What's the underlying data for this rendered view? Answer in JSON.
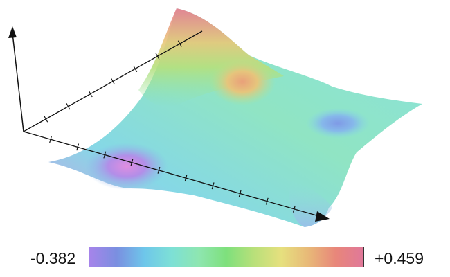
{
  "plot": {
    "surface": "3d-height-surface",
    "axes": [
      "x-axis",
      "y-axis",
      "z-axis"
    ],
    "x_ticks": 10,
    "y_ticks": 7
  },
  "colorbar": {
    "min_label": "-0.382",
    "max_label": "+0.459",
    "colors": [
      "#a684ea",
      "#7a8fe0",
      "#6ec6ea",
      "#7de0d6",
      "#8ee6b0",
      "#7ee07c",
      "#b8e07a",
      "#e6e07e",
      "#e8b878",
      "#e8867a",
      "#e0789a"
    ]
  }
}
